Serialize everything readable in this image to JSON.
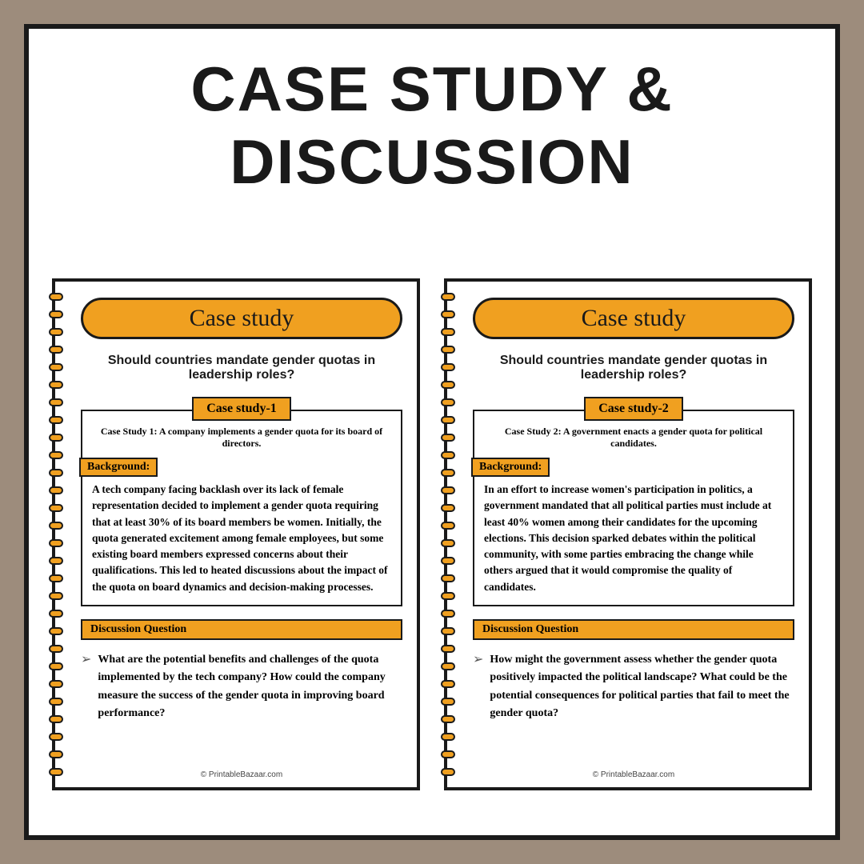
{
  "main_title": "Case study & Discussion",
  "spiral_count": 28,
  "cards": [
    {
      "header": "Case study",
      "question": "Should countries mandate gender quotas in leadership roles?",
      "study_label": "Case study-1",
      "case_intro": "Case Study 1: A company implements a gender quota for its board of directors.",
      "bg_label": "Background:",
      "bg_text": "A tech company facing backlash over its lack of female representation decided to implement a gender quota requiring that at least 30% of its board members be women. Initially, the quota generated excitement among female employees, but some existing board members expressed concerns about their qualifications. This led to heated discussions about the impact of the quota on board dynamics and decision-making processes.",
      "dq_label": "Discussion Question",
      "dq_text": "What are the potential benefits and challenges of the quota implemented by the tech company? How could the company measure the success of the gender quota in improving board performance?",
      "footer": "© PrintableBazaar.com"
    },
    {
      "header": "Case study",
      "question": "Should countries mandate gender quotas in leadership roles?",
      "study_label": "Case study-2",
      "case_intro": "Case Study 2: A government enacts a gender quota for political candidates.",
      "bg_label": "Background:",
      "bg_text": "In an effort to increase women's participation in politics, a government mandated that all political parties must include at least 40% women among their candidates for the upcoming elections. This decision sparked debates within the political community, with some parties embracing the change while others argued that it would compromise the quality of candidates.",
      "dq_label": "Discussion Question",
      "dq_text": "How might the government assess whether the gender quota positively impacted the political landscape? What could be the potential consequences for political parties that fail to meet the gender quota?",
      "footer": "© PrintableBazaar.com"
    }
  ],
  "colors": {
    "outer_bg": "#9d8c7c",
    "frame_bg": "#ffffff",
    "frame_border": "#1a1a1a",
    "accent": "#f0a020"
  }
}
